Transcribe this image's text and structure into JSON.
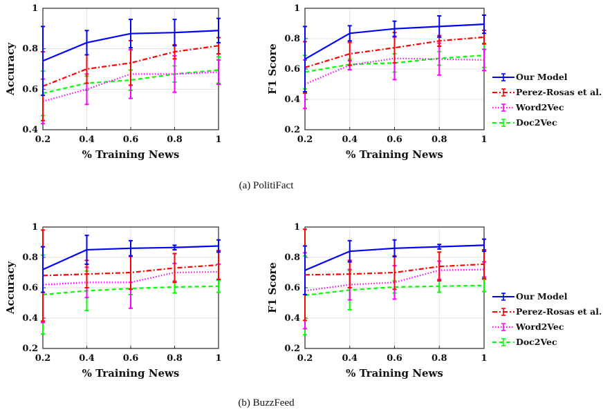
{
  "colors": {
    "our_model": "#0000ff",
    "perez_rosas": "#ff0000",
    "word2vec": "#ff00ff",
    "doc2vec": "#00ff00"
  },
  "legend": {
    "items": [
      {
        "label": "Our Model",
        "color": "#0000ff",
        "dash": "solid"
      },
      {
        "label": "Perez-Rosas et al.",
        "color": "#ff0000",
        "dash": "dashdot"
      },
      {
        "label": "Word2Vec",
        "color": "#ff00ff",
        "dash": "dotted"
      },
      {
        "label": "Doc2Vec",
        "color": "#00ff00",
        "dash": "dashed"
      }
    ]
  },
  "captions": {
    "a": "(a)  PolitiFact",
    "b": "(b)  BuzzFeed"
  },
  "chart_data": [
    {
      "type": "line",
      "panel": "a-left",
      "xlabel": "% Training News",
      "ylabel": "Accuracy",
      "x": [
        0.2,
        0.4,
        0.6,
        0.8,
        1
      ],
      "xlim": [
        0.2,
        1
      ],
      "ylim": [
        0.4,
        1
      ],
      "xticks": [
        "0.2",
        "0.4",
        "0.6",
        "0.8",
        "1"
      ],
      "yticks": [
        "0.4",
        "0.6",
        "0.8",
        "1"
      ],
      "grid": true,
      "series": [
        {
          "name": "Our Model",
          "values": [
            0.74,
            0.83,
            0.875,
            0.88,
            0.89
          ],
          "err": [
            0.17,
            0.06,
            0.07,
            0.065,
            0.06
          ]
        },
        {
          "name": "Perez-Rosas et al.",
          "values": [
            0.615,
            0.7,
            0.73,
            0.785,
            0.815
          ],
          "err": [
            0.17,
            0.07,
            0.11,
            0.035,
            0.04
          ]
        },
        {
          "name": "Word2Vec",
          "values": [
            0.54,
            0.6,
            0.675,
            0.675,
            0.685
          ],
          "err": [
            0.11,
            0.075,
            0.12,
            0.09,
            0.06
          ]
        },
        {
          "name": "Doc2Vec",
          "values": [
            0.58,
            0.63,
            0.645,
            0.675,
            0.695
          ],
          "err": [
            0.11,
            0.035,
            0.05,
            0.04,
            0.065
          ]
        }
      ]
    },
    {
      "type": "line",
      "panel": "a-right",
      "xlabel": "% Training News",
      "ylabel": "F1 Score",
      "x": [
        0.2,
        0.4,
        0.6,
        0.8,
        1
      ],
      "xlim": [
        0.2,
        1
      ],
      "ylim": [
        0.2,
        1
      ],
      "xticks": [
        "0.2",
        "0.4",
        "0.6",
        "0.8",
        "1"
      ],
      "yticks": [
        "0.2",
        "0.4",
        "0.6",
        "0.8",
        "1"
      ],
      "grid": true,
      "series": [
        {
          "name": "Our Model",
          "values": [
            0.665,
            0.835,
            0.865,
            0.88,
            0.895
          ],
          "err": [
            0.215,
            0.05,
            0.05,
            0.07,
            0.06
          ]
        },
        {
          "name": "Perez-Rosas et al.",
          "values": [
            0.61,
            0.7,
            0.74,
            0.785,
            0.81
          ],
          "err": [
            0.17,
            0.075,
            0.1,
            0.035,
            0.045
          ]
        },
        {
          "name": "Word2Vec",
          "values": [
            0.5,
            0.625,
            0.67,
            0.665,
            0.66
          ],
          "err": [
            0.16,
            0.03,
            0.14,
            0.105,
            0.07
          ]
        },
        {
          "name": "Doc2Vec",
          "values": [
            0.58,
            0.63,
            0.64,
            0.67,
            0.69
          ],
          "err": [
            0.11,
            0.035,
            0.06,
            0.045,
            0.08
          ]
        }
      ]
    },
    {
      "type": "line",
      "panel": "b-left",
      "xlabel": "% Training News",
      "ylabel": "Accuracy",
      "x": [
        0.2,
        0.4,
        0.6,
        0.8,
        1
      ],
      "xlim": [
        0.2,
        1
      ],
      "ylim": [
        0.2,
        1
      ],
      "xticks": [
        "0.2",
        "0.4",
        "0.6",
        "0.8",
        "1"
      ],
      "yticks": [
        "0.2",
        "0.4",
        "0.6",
        "0.8",
        "1"
      ],
      "grid": true,
      "series": [
        {
          "name": "Our Model",
          "values": [
            0.72,
            0.85,
            0.86,
            0.865,
            0.875
          ],
          "err": [
            0.15,
            0.095,
            0.05,
            0.015,
            0.04
          ]
        },
        {
          "name": "Perez-Rosas et al.",
          "values": [
            0.68,
            0.69,
            0.7,
            0.73,
            0.75
          ],
          "err": [
            0.3,
            0.09,
            0.11,
            0.095,
            0.095
          ]
        },
        {
          "name": "Word2Vec",
          "values": [
            0.62,
            0.635,
            0.635,
            0.7,
            0.705
          ],
          "err": [
            0.25,
            0.1,
            0.17,
            0.06,
            0.05
          ]
        },
        {
          "name": "Doc2Vec",
          "values": [
            0.555,
            0.58,
            0.595,
            0.605,
            0.61
          ],
          "err": [
            0.26,
            0.13,
            0.04,
            0.04,
            0.04
          ]
        }
      ]
    },
    {
      "type": "line",
      "panel": "b-right",
      "xlabel": "% Training News",
      "ylabel": "F1 Score",
      "x": [
        0.2,
        0.4,
        0.6,
        0.8,
        1
      ],
      "xlim": [
        0.2,
        1
      ],
      "ylim": [
        0.2,
        1
      ],
      "xticks": [
        "0.2",
        "0.4",
        "0.6",
        "0.8",
        "1"
      ],
      "yticks": [
        "0.2",
        "0.4",
        "0.6",
        "0.8",
        "1"
      ],
      "grid": true,
      "series": [
        {
          "name": "Our Model",
          "values": [
            0.715,
            0.84,
            0.86,
            0.87,
            0.88
          ],
          "err": [
            0.16,
            0.07,
            0.055,
            0.015,
            0.04
          ]
        },
        {
          "name": "Perez-Rosas et al.",
          "values": [
            0.685,
            0.69,
            0.7,
            0.74,
            0.755
          ],
          "err": [
            0.3,
            0.09,
            0.11,
            0.095,
            0.095
          ]
        },
        {
          "name": "Word2Vec",
          "values": [
            0.58,
            0.62,
            0.635,
            0.715,
            0.72
          ],
          "err": [
            0.25,
            0.1,
            0.11,
            0.06,
            0.05
          ]
        },
        {
          "name": "Doc2Vec",
          "values": [
            0.55,
            0.585,
            0.605,
            0.61,
            0.615
          ],
          "err": [
            0.26,
            0.13,
            0.04,
            0.04,
            0.04
          ]
        }
      ]
    }
  ]
}
